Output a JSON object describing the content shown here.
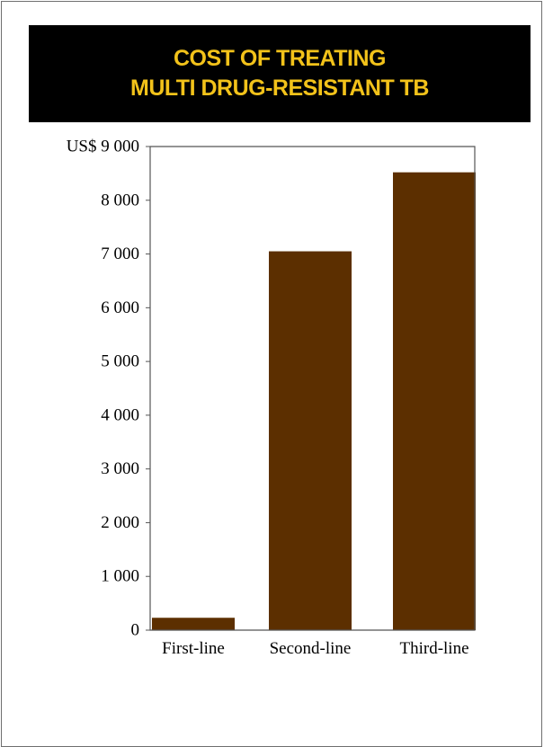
{
  "chart_data": {
    "type": "bar",
    "title": [
      "COST OF TREATING",
      "MULTI DRUG-RESISTANT TB"
    ],
    "categories": [
      "First-line",
      "Second-line",
      "Third-line"
    ],
    "values": [
      230,
      7050,
      8520
    ],
    "ylim": [
      0,
      9000
    ],
    "yticks": [
      0,
      1000,
      2000,
      3000,
      4000,
      5000,
      6000,
      7000,
      8000,
      9000
    ],
    "ytick_labels": [
      "0",
      "1 000",
      "2 000",
      "3 000",
      "4 000",
      "5 000",
      "6 000",
      "7 000",
      "8 000",
      "US$ 9 000"
    ],
    "grid": false,
    "bar_color": "#5c2f00",
    "title_color": "#f2c21a",
    "title_background": "#000000"
  }
}
